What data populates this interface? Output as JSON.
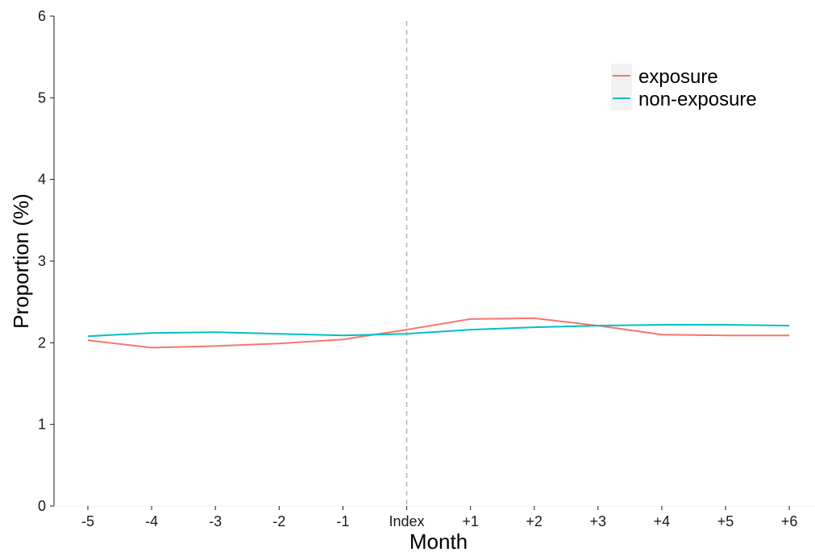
{
  "chart_data": {
    "type": "line",
    "xlabel": "Month",
    "ylabel": "Proportion (%)",
    "categories": [
      "-5",
      "-4",
      "-3",
      "-2",
      "-1",
      "Index",
      "+1",
      "+2",
      "+3",
      "+4",
      "+5",
      "+6"
    ],
    "ylim": [
      0,
      6
    ],
    "yticks": [
      0,
      1,
      2,
      3,
      4,
      5,
      6
    ],
    "grid": false,
    "legend_position": "top-right",
    "reference_line": {
      "category": "Index",
      "style": "dashed",
      "color": "#b3b3b3"
    },
    "series": [
      {
        "name": "exposure",
        "color": "#F8766D",
        "values": [
          2.03,
          1.94,
          1.96,
          1.99,
          2.04,
          2.16,
          2.29,
          2.3,
          2.21,
          2.1,
          2.09,
          2.09
        ]
      },
      {
        "name": "non-exposure",
        "color": "#00BFC4",
        "values": [
          2.08,
          2.12,
          2.13,
          2.11,
          2.09,
          2.11,
          2.16,
          2.19,
          2.21,
          2.22,
          2.22,
          2.21
        ]
      }
    ]
  }
}
